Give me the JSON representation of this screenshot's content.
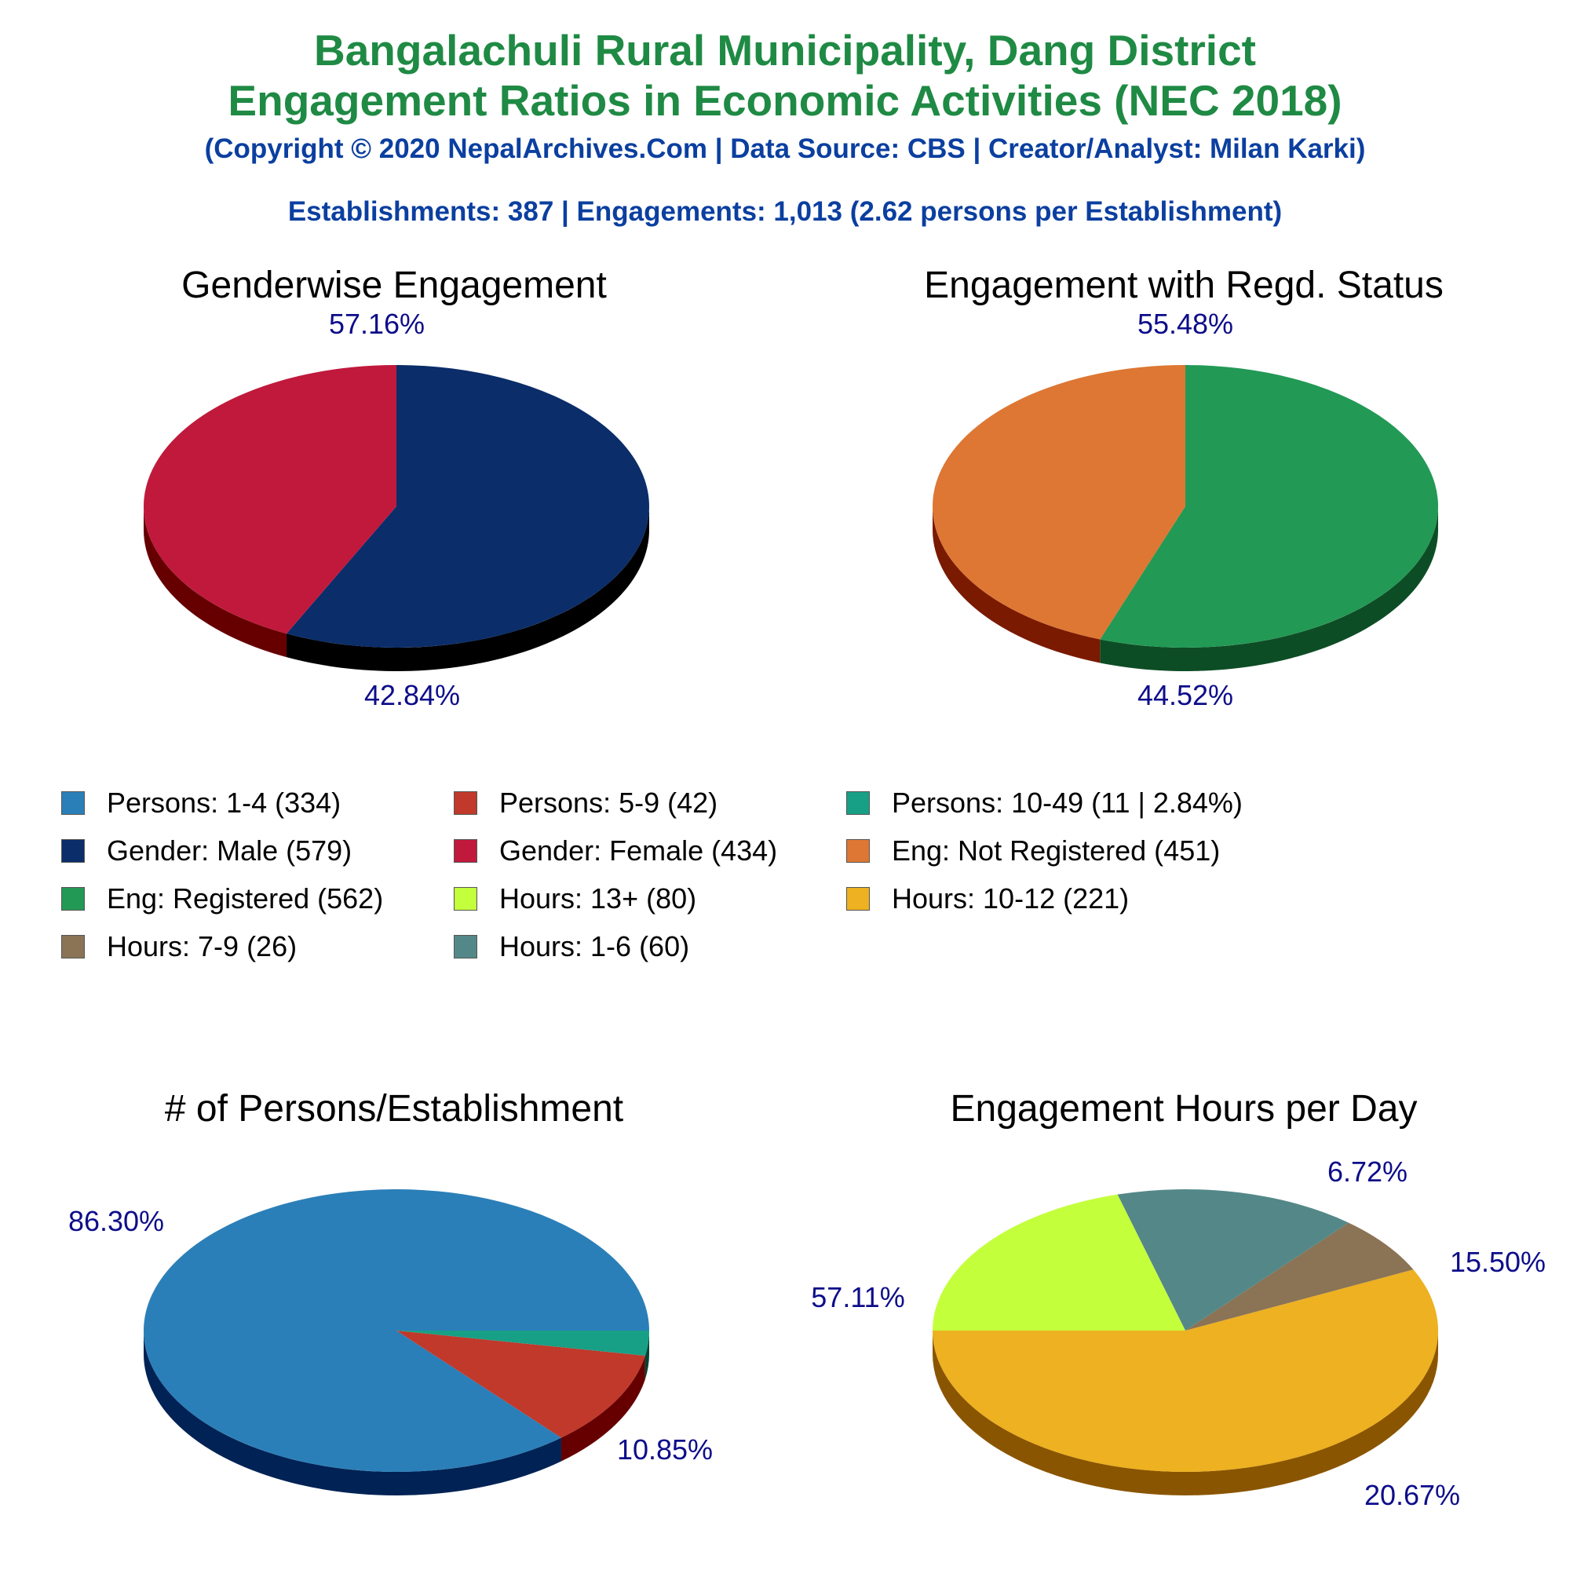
{
  "header": {
    "title_line1": "Bangalachuli Rural Municipality, Dang District",
    "title_line2": "Engagement Ratios in Economic Activities (NEC 2018)",
    "copyright": "(Copyright © 2020 NepalArchives.Com | Data Source: CBS | Creator/Analyst: Milan Karki)",
    "summary": "Establishments: 387 | Engagements: 1,013 (2.62 persons per Establishment)"
  },
  "legend": {
    "items": [
      {
        "label": "Persons: 1-4 (334)",
        "color": "#2b7fb8"
      },
      {
        "label": "Persons: 5-9 (42)",
        "color": "#c0392b"
      },
      {
        "label": "Persons: 10-49 (11 | 2.84%)",
        "color": "#17a085"
      },
      {
        "label": "Gender: Male (579)",
        "color": "#0b2d69"
      },
      {
        "label": "Gender: Female (434)",
        "color": "#c0193c"
      },
      {
        "label": "Eng: Not Registered (451)",
        "color": "#dd7733"
      },
      {
        "label": "Eng: Registered (562)",
        "color": "#229955"
      },
      {
        "label": "Hours: 13+ (80)",
        "color": "#c4ff3c"
      },
      {
        "label": "Hours: 10-12 (221)",
        "color": "#edb121"
      },
      {
        "label": "Hours: 7-9 (26)",
        "color": "#8b7355"
      },
      {
        "label": "Hours: 1-6 (60)",
        "color": "#548888"
      }
    ]
  },
  "chart_data": [
    {
      "type": "pie",
      "title": "Genderwise Engagement",
      "slices": [
        {
          "label": "Gender: Male",
          "value": 579,
          "percent_label": "57.16%",
          "color": "#0b2d69",
          "side": "#000000"
        },
        {
          "label": "Gender: Female",
          "value": 434,
          "percent_label": "42.84%",
          "color": "#c0193c",
          "side": "#660000"
        }
      ]
    },
    {
      "type": "pie",
      "title": "Engagement with Regd. Status",
      "slices": [
        {
          "label": "Eng: Registered",
          "value": 562,
          "percent_label": "55.48%",
          "color": "#229955",
          "side": "#0d4d25"
        },
        {
          "label": "Eng: Not Registered",
          "value": 451,
          "percent_label": "44.52%",
          "color": "#dd7733",
          "side": "#7a1a00"
        }
      ]
    },
    {
      "type": "pie",
      "title": "# of Persons/Establishment",
      "slices": [
        {
          "label": "Persons: 1-4",
          "value": 334,
          "percent_label": "86.30%",
          "color": "#2b7fb8",
          "side": "#002255"
        },
        {
          "label": "Persons: 5-9",
          "value": 42,
          "percent_label": "10.85%",
          "color": "#c0392b",
          "side": "#660000"
        },
        {
          "label": "Persons: 10-49",
          "value": 11,
          "percent_label": "",
          "color": "#17a085",
          "side": "#004433"
        }
      ]
    },
    {
      "type": "pie",
      "title": "Engagement Hours per Day",
      "slices": [
        {
          "label": "Hours: 10-12",
          "value": 221,
          "percent_label": "57.11%",
          "color": "#edb121",
          "side": "#8a5500"
        },
        {
          "label": "Hours: 7-9",
          "value": 26,
          "percent_label": "6.72%",
          "color": "#8b7355",
          "side": "#4a3a22"
        },
        {
          "label": "Hours: 1-6",
          "value": 60,
          "percent_label": "15.50%",
          "color": "#548888",
          "side": "#223f3f"
        },
        {
          "label": "Hours: 13+",
          "value": 80,
          "percent_label": "20.67%",
          "color": "#c4ff3c",
          "side": "#66aa00"
        }
      ]
    }
  ]
}
